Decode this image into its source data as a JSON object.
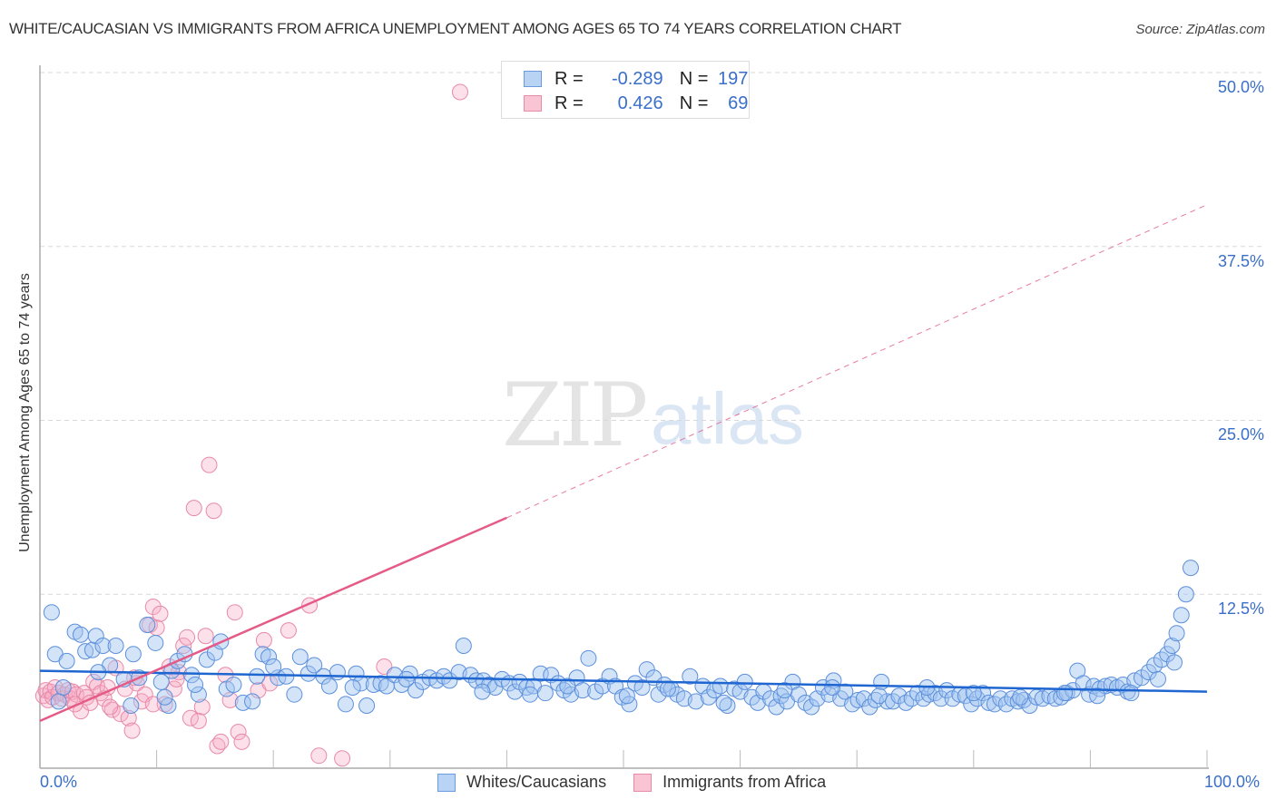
{
  "header": {
    "title": "WHITE/CAUCASIAN VS IMMIGRANTS FROM AFRICA UNEMPLOYMENT AMONG AGES 65 TO 74 YEARS CORRELATION CHART",
    "source": "Source: ZipAtlas.com"
  },
  "watermark": {
    "zip": "ZIP",
    "atlas": "atlas"
  },
  "stats": {
    "rows": [
      {
        "r_label": "R =",
        "r_value": "-0.289",
        "n_label": "N =",
        "n_value": "197",
        "color_fill": "#b9d3f5",
        "color_stroke": "#6a9be0"
      },
      {
        "r_label": "R =",
        "r_value": "0.426",
        "n_label": "N =",
        "n_value": "69",
        "color_fill": "#f9c5d5",
        "color_stroke": "#e98aa8"
      }
    ]
  },
  "axes": {
    "ylabel": "Unemployment Among Ages 65 to 74 years",
    "y_ticks": [
      "50.0%",
      "37.5%",
      "25.0%",
      "12.5%"
    ],
    "x_ticks": {
      "left": "0.0%",
      "right": "100.0%"
    }
  },
  "legend": {
    "items": [
      {
        "label": "Whites/Caucasians",
        "fill": "#b9d3f5",
        "stroke": "#6a9be0"
      },
      {
        "label": "Immigrants from Africa",
        "fill": "#f9c5d5",
        "stroke": "#e98aa8"
      }
    ]
  },
  "colors": {
    "blue_point_fill": "rgba(160,196,240,0.45)",
    "blue_point_stroke": "#5b8fdc",
    "pink_point_fill": "rgba(246,170,195,0.35)",
    "pink_point_stroke": "#e88aa8",
    "blue_line": "#1f66d1",
    "pink_line": "#e55b87",
    "grid": "#d8d8d8",
    "tick_text": "#3a6fc9"
  },
  "chart_data": {
    "type": "scatter",
    "title": "WHITE/CAUCASIAN VS IMMIGRANTS FROM AFRICA UNEMPLOYMENT AMONG AGES 65 TO 74 YEARS CORRELATION CHART",
    "xlabel": "",
    "ylabel": "Unemployment Among Ages 65 to 74 years",
    "xlim": [
      0,
      100
    ],
    "ylim": [
      0,
      50
    ],
    "y_gridlines": [
      12.5,
      25.0,
      37.5,
      50.0
    ],
    "legend_position": "bottom",
    "series": [
      {
        "name": "Whites/Caucasians",
        "R": -0.289,
        "N": 197,
        "trendline": {
          "x": [
            0,
            100
          ],
          "y": [
            7.0,
            5.5
          ],
          "style": "solid"
        },
        "points": [
          [
            1.0,
            11.2
          ],
          [
            1.3,
            8.2
          ],
          [
            1.6,
            4.8
          ],
          [
            2.3,
            7.7
          ],
          [
            3.0,
            9.8
          ],
          [
            3.5,
            9.6
          ],
          [
            3.9,
            8.4
          ],
          [
            4.5,
            8.5
          ],
          [
            4.8,
            9.5
          ],
          [
            5.4,
            8.8
          ],
          [
            6.0,
            7.4
          ],
          [
            6.5,
            8.8
          ],
          [
            7.2,
            6.4
          ],
          [
            7.8,
            4.5
          ],
          [
            8.0,
            8.2
          ],
          [
            8.5,
            6.5
          ],
          [
            9.2,
            10.3
          ],
          [
            9.9,
            9.0
          ],
          [
            10.4,
            6.2
          ],
          [
            11.0,
            4.5
          ],
          [
            11.3,
            7.0
          ],
          [
            11.8,
            7.7
          ],
          [
            12.4,
            8.2
          ],
          [
            13.0,
            6.7
          ],
          [
            13.6,
            5.3
          ],
          [
            14.3,
            7.8
          ],
          [
            15.0,
            8.3
          ],
          [
            15.5,
            9.1
          ],
          [
            16.0,
            5.7
          ],
          [
            17.4,
            4.7
          ],
          [
            18.2,
            4.8
          ],
          [
            18.6,
            6.6
          ],
          [
            19.1,
            8.2
          ],
          [
            19.6,
            8.0
          ],
          [
            20.4,
            6.5
          ],
          [
            21.1,
            6.6
          ],
          [
            21.8,
            5.3
          ],
          [
            22.3,
            8.0
          ],
          [
            23.0,
            6.8
          ],
          [
            23.5,
            7.4
          ],
          [
            24.3,
            6.6
          ],
          [
            24.8,
            5.9
          ],
          [
            25.5,
            6.9
          ],
          [
            26.2,
            4.6
          ],
          [
            27.1,
            6.8
          ],
          [
            27.5,
            6.1
          ],
          [
            28.0,
            4.5
          ],
          [
            28.6,
            6.0
          ],
          [
            29.2,
            6.1
          ],
          [
            29.7,
            5.9
          ],
          [
            30.4,
            6.7
          ],
          [
            31.0,
            6.0
          ],
          [
            31.7,
            6.8
          ],
          [
            32.2,
            5.6
          ],
          [
            32.8,
            6.2
          ],
          [
            33.4,
            6.5
          ],
          [
            34.0,
            6.3
          ],
          [
            34.6,
            6.6
          ],
          [
            35.1,
            6.3
          ],
          [
            35.9,
            6.9
          ],
          [
            36.3,
            8.8
          ],
          [
            36.9,
            6.7
          ],
          [
            37.4,
            6.3
          ],
          [
            38.0,
            6.3
          ],
          [
            38.5,
            6.0
          ],
          [
            39.0,
            5.8
          ],
          [
            39.6,
            6.4
          ],
          [
            40.2,
            6.1
          ],
          [
            40.7,
            5.5
          ],
          [
            41.1,
            6.2
          ],
          [
            41.7,
            5.8
          ],
          [
            42.3,
            5.9
          ],
          [
            42.9,
            6.8
          ],
          [
            43.3,
            5.4
          ],
          [
            43.8,
            6.7
          ],
          [
            44.4,
            6.1
          ],
          [
            44.9,
            5.6
          ],
          [
            45.5,
            5.3
          ],
          [
            46.0,
            6.5
          ],
          [
            46.5,
            5.6
          ],
          [
            47.0,
            7.9
          ],
          [
            47.6,
            5.5
          ],
          [
            48.2,
            5.9
          ],
          [
            48.8,
            6.6
          ],
          [
            49.3,
            5.9
          ],
          [
            49.9,
            5.1
          ],
          [
            50.5,
            4.6
          ],
          [
            51.0,
            6.1
          ],
          [
            51.6,
            5.8
          ],
          [
            52.0,
            7.1
          ],
          [
            52.6,
            6.5
          ],
          [
            53.0,
            5.3
          ],
          [
            53.5,
            6.0
          ],
          [
            54.1,
            5.7
          ],
          [
            54.6,
            5.3
          ],
          [
            55.2,
            5.0
          ],
          [
            55.7,
            6.6
          ],
          [
            56.2,
            4.8
          ],
          [
            56.8,
            5.9
          ],
          [
            57.3,
            5.1
          ],
          [
            57.8,
            5.6
          ],
          [
            58.3,
            5.9
          ],
          [
            58.9,
            4.5
          ],
          [
            59.5,
            5.7
          ],
          [
            60.0,
            5.5
          ],
          [
            60.4,
            6.2
          ],
          [
            61.0,
            5.1
          ],
          [
            61.5,
            4.7
          ],
          [
            62.0,
            5.5
          ],
          [
            62.6,
            5.0
          ],
          [
            63.1,
            4.4
          ],
          [
            63.5,
            5.2
          ],
          [
            64.0,
            4.8
          ],
          [
            64.5,
            6.2
          ],
          [
            65.0,
            5.3
          ],
          [
            65.6,
            4.7
          ],
          [
            66.1,
            4.4
          ],
          [
            66.6,
            5.0
          ],
          [
            67.1,
            5.8
          ],
          [
            67.6,
            5.3
          ],
          [
            68.0,
            6.3
          ],
          [
            68.6,
            5.0
          ],
          [
            69.0,
            5.5
          ],
          [
            69.6,
            4.6
          ],
          [
            70.1,
            4.9
          ],
          [
            70.6,
            5.0
          ],
          [
            71.1,
            4.4
          ],
          [
            71.6,
            4.9
          ],
          [
            72.1,
            6.2
          ],
          [
            72.6,
            4.8
          ],
          [
            73.1,
            4.8
          ],
          [
            73.6,
            5.2
          ],
          [
            74.2,
            4.7
          ],
          [
            74.7,
            5.0
          ],
          [
            75.2,
            5.4
          ],
          [
            75.7,
            5.0
          ],
          [
            76.2,
            5.3
          ],
          [
            76.7,
            5.4
          ],
          [
            77.2,
            5.0
          ],
          [
            77.7,
            5.6
          ],
          [
            78.2,
            5.0
          ],
          [
            78.8,
            5.3
          ],
          [
            79.3,
            5.2
          ],
          [
            79.8,
            4.6
          ],
          [
            80.3,
            5.0
          ],
          [
            80.8,
            5.4
          ],
          [
            81.3,
            4.7
          ],
          [
            81.8,
            4.6
          ],
          [
            82.3,
            5.0
          ],
          [
            82.8,
            4.6
          ],
          [
            83.3,
            5.0
          ],
          [
            83.8,
            4.8
          ],
          [
            84.3,
            4.9
          ],
          [
            84.8,
            4.5
          ],
          [
            85.4,
            5.1
          ],
          [
            85.9,
            5.0
          ],
          [
            86.5,
            5.2
          ],
          [
            87.0,
            5.0
          ],
          [
            87.5,
            5.1
          ],
          [
            88.0,
            5.4
          ],
          [
            88.5,
            5.6
          ],
          [
            88.9,
            7.0
          ],
          [
            89.4,
            6.1
          ],
          [
            89.9,
            5.3
          ],
          [
            90.3,
            5.9
          ],
          [
            90.8,
            5.7
          ],
          [
            91.3,
            5.9
          ],
          [
            91.8,
            6.0
          ],
          [
            92.3,
            5.8
          ],
          [
            92.8,
            6.0
          ],
          [
            93.2,
            5.5
          ],
          [
            93.8,
            6.3
          ],
          [
            94.4,
            6.5
          ],
          [
            95.0,
            6.9
          ],
          [
            95.5,
            7.4
          ],
          [
            96.1,
            7.8
          ],
          [
            96.6,
            8.2
          ],
          [
            97.0,
            8.8
          ],
          [
            97.4,
            9.7
          ],
          [
            97.8,
            11.0
          ],
          [
            98.2,
            12.5
          ],
          [
            98.6,
            14.4
          ],
          [
            2.0,
            5.8
          ],
          [
            5.0,
            6.9
          ],
          [
            10.7,
            5.1
          ],
          [
            13.3,
            6.0
          ],
          [
            16.6,
            6.0
          ],
          [
            20.0,
            7.3
          ],
          [
            26.8,
            5.8
          ],
          [
            31.4,
            6.4
          ],
          [
            37.9,
            5.5
          ],
          [
            42.0,
            5.3
          ],
          [
            45.2,
            5.9
          ],
          [
            50.3,
            5.2
          ],
          [
            53.8,
            5.7
          ],
          [
            58.6,
            4.7
          ],
          [
            63.8,
            5.6
          ],
          [
            67.9,
            5.8
          ],
          [
            71.9,
            5.2
          ],
          [
            76.0,
            5.8
          ],
          [
            80.0,
            5.4
          ],
          [
            84.0,
            5.1
          ],
          [
            87.8,
            5.4
          ],
          [
            90.6,
            5.2
          ],
          [
            93.5,
            5.4
          ],
          [
            95.8,
            6.4
          ],
          [
            97.2,
            7.6
          ]
        ]
      },
      {
        "name": "Immigrants from Africa",
        "R": 0.426,
        "N": 69,
        "trendline": {
          "x": [
            0,
            40
          ],
          "y": [
            3.4,
            18.0
          ],
          "style": "solid",
          "extension": {
            "x": [
              40,
              100
            ],
            "y": [
              18.0,
              40.5
            ],
            "style": "dashed"
          }
        },
        "points": [
          [
            0.3,
            5.2
          ],
          [
            0.5,
            5.6
          ],
          [
            0.7,
            4.9
          ],
          [
            0.9,
            5.5
          ],
          [
            1.1,
            5.1
          ],
          [
            1.3,
            5.8
          ],
          [
            1.6,
            5.4
          ],
          [
            1.9,
            5.0
          ],
          [
            2.1,
            5.3
          ],
          [
            2.4,
            5.6
          ],
          [
            2.6,
            5.0
          ],
          [
            2.8,
            5.5
          ],
          [
            3.1,
            5.3
          ],
          [
            3.5,
            4.1
          ],
          [
            3.8,
            5.4
          ],
          [
            4.0,
            5.1
          ],
          [
            4.3,
            4.7
          ],
          [
            4.6,
            6.2
          ],
          [
            4.9,
            5.9
          ],
          [
            5.2,
            5.4
          ],
          [
            5.5,
            5.0
          ],
          [
            5.8,
            5.8
          ],
          [
            6.2,
            4.2
          ],
          [
            6.5,
            7.2
          ],
          [
            6.9,
            3.9
          ],
          [
            7.3,
            5.7
          ],
          [
            7.6,
            3.6
          ],
          [
            7.9,
            2.7
          ],
          [
            8.3,
            6.1
          ],
          [
            8.7,
            4.8
          ],
          [
            9.0,
            5.3
          ],
          [
            9.4,
            10.3
          ],
          [
            9.7,
            11.6
          ],
          [
            10.0,
            10.1
          ],
          [
            10.3,
            11.1
          ],
          [
            10.7,
            4.6
          ],
          [
            11.1,
            7.3
          ],
          [
            11.5,
            5.7
          ],
          [
            11.9,
            6.9
          ],
          [
            12.3,
            8.8
          ],
          [
            12.6,
            9.4
          ],
          [
            12.9,
            3.6
          ],
          [
            13.2,
            18.7
          ],
          [
            13.6,
            3.4
          ],
          [
            13.9,
            4.4
          ],
          [
            14.2,
            9.5
          ],
          [
            14.5,
            21.8
          ],
          [
            14.9,
            18.5
          ],
          [
            15.2,
            1.6
          ],
          [
            15.5,
            1.9
          ],
          [
            15.9,
            6.7
          ],
          [
            16.3,
            4.9
          ],
          [
            16.7,
            11.2
          ],
          [
            17.0,
            2.6
          ],
          [
            17.3,
            1.9
          ],
          [
            18.7,
            5.6
          ],
          [
            19.2,
            9.2
          ],
          [
            19.7,
            6.1
          ],
          [
            21.3,
            9.9
          ],
          [
            23.1,
            11.7
          ],
          [
            23.9,
            0.9
          ],
          [
            25.9,
            0.7
          ],
          [
            29.5,
            7.3
          ],
          [
            36.0,
            48.6
          ],
          [
            9.7,
            4.6
          ],
          [
            11.7,
            6.4
          ],
          [
            6.0,
            4.4
          ],
          [
            8.1,
            6.5
          ],
          [
            3.0,
            4.6
          ]
        ]
      }
    ]
  }
}
